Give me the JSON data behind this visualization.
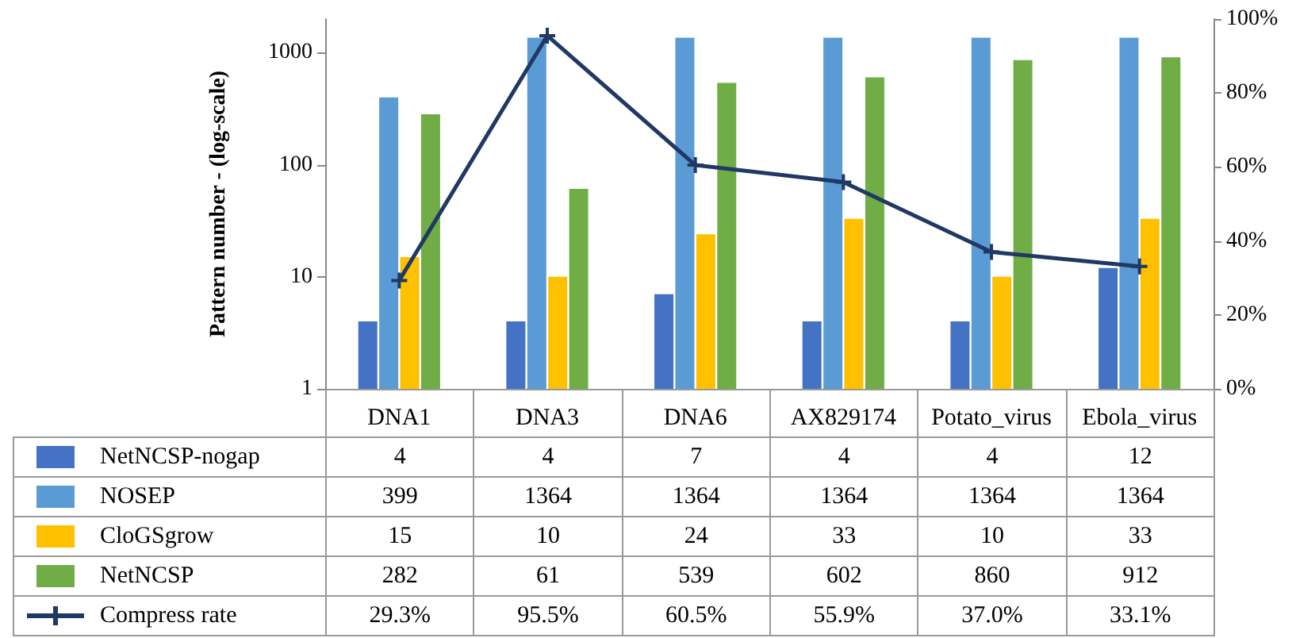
{
  "chart_data": {
    "type": "bar",
    "ylabel": "Pattern number - (log-scale)",
    "categories": [
      "DNA1",
      "DNA3",
      "DNA6",
      "AX829174",
      "Potato_virus",
      "Ebola_virus"
    ],
    "series": [
      {
        "name": "NetNCSP-nogap",
        "color": "#4472c4",
        "values": [
          4,
          4,
          7,
          4,
          4,
          12
        ],
        "value_labels": [
          "4",
          "4",
          "7",
          "4",
          "4",
          "12"
        ]
      },
      {
        "name": "NOSEP",
        "color": "#5b9bd5",
        "values": [
          399,
          1364,
          1364,
          1364,
          1364,
          1364
        ],
        "value_labels": [
          "399",
          "1364",
          "1364",
          "1364",
          "1364",
          "1364"
        ]
      },
      {
        "name": "CloGSgrow",
        "color": "#ffc000",
        "values": [
          15,
          10,
          24,
          33,
          10,
          33
        ],
        "value_labels": [
          "15",
          "10",
          "24",
          "33",
          "10",
          "33"
        ]
      },
      {
        "name": "NetNCSP",
        "color": "#70ad47",
        "values": [
          282,
          61,
          539,
          602,
          860,
          912
        ],
        "value_labels": [
          "282",
          "61",
          "539",
          "602",
          "860",
          "912"
        ]
      },
      {
        "name": "Compress rate",
        "type": "line",
        "axis": "y2",
        "color": "#203864",
        "marker": "cross",
        "values": [
          29.3,
          95.5,
          60.5,
          55.9,
          37.0,
          33.1
        ],
        "value_labels": [
          "29.3%",
          "95.5%",
          "60.5%",
          "55.9%",
          "37.0%",
          "33.1%"
        ]
      }
    ],
    "log": "y",
    "ylim": [
      1,
      2000
    ],
    "yticks": [
      1,
      10,
      100,
      1000
    ],
    "y2lim": [
      0,
      100
    ],
    "y2ticks": [
      {
        "value": 0,
        "label": "0%"
      },
      {
        "value": 20,
        "label": "20%"
      },
      {
        "value": 40,
        "label": "40%"
      },
      {
        "value": 60,
        "label": "60%"
      },
      {
        "value": 80,
        "label": "80%"
      },
      {
        "value": 100,
        "label": "100%"
      }
    ],
    "legend": "bottom"
  }
}
